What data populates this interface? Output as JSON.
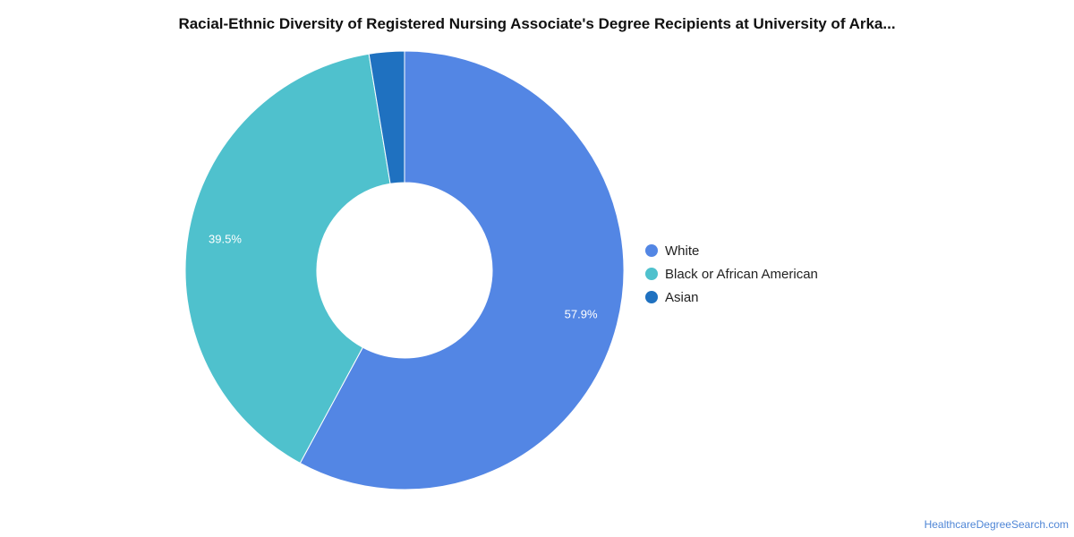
{
  "chart_data": {
    "type": "pie",
    "title": "Racial-Ethnic Diversity of Registered Nursing Associate's Degree Recipients at University of Arka...",
    "categories": [
      "White",
      "Black or African American",
      "Asian"
    ],
    "values": [
      57.9,
      39.5,
      2.6
    ],
    "data_labels": [
      "57.9%",
      "39.5%",
      ""
    ],
    "colors": [
      "#5386e4",
      "#4fc1cd",
      "#1f71c0"
    ],
    "donut": true,
    "legend_position": "right"
  },
  "footer": {
    "source": "HealthcareDegreeSearch.com"
  }
}
